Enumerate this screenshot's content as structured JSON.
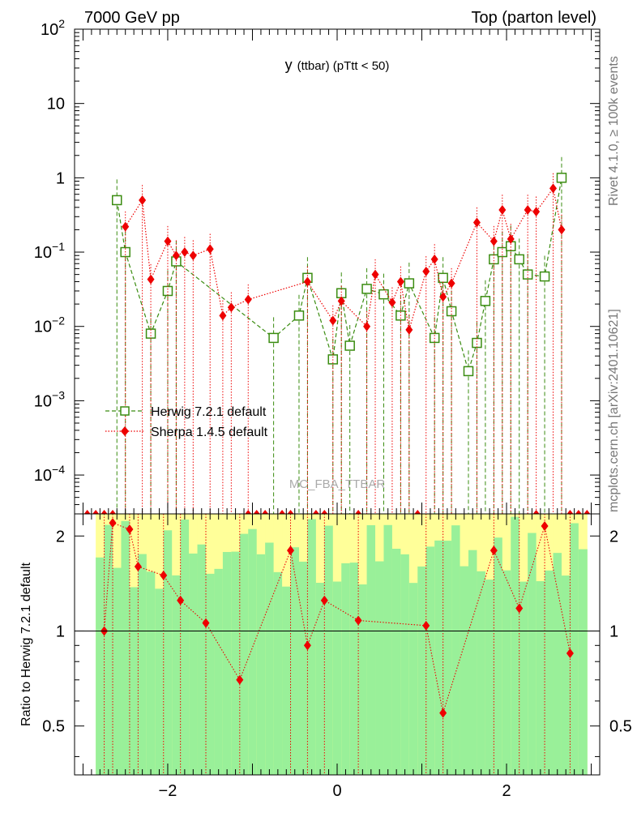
{
  "header": {
    "beam": "7000 GeV pp",
    "process": "Top (parton level)"
  },
  "side_labels": {
    "rivet": "Rivet 4.1.0, ≥ 100k events",
    "source": "mcplots.cern.ch [arXiv:2401.10621]"
  },
  "watermark": "MC_FBA_TTBAR",
  "chart_data": [
    {
      "panel": "main",
      "type": "scatter",
      "title_main": "y",
      "title_sub": "(ttbar)  (pTtt < 50)",
      "xlabel": "",
      "ylabel": "",
      "xlim": [
        -3.1,
        3.1
      ],
      "ylim": [
        3e-05,
        100
      ],
      "yscale": "log",
      "y_ticks": [
        {
          "value": 0.0001,
          "base": "10",
          "exp": "−4"
        },
        {
          "value": 0.001,
          "base": "10",
          "exp": "−3"
        },
        {
          "value": 0.01,
          "base": "10",
          "exp": "−2"
        },
        {
          "value": 0.1,
          "base": "10",
          "exp": "−1"
        },
        {
          "value": 1,
          "base": "1",
          "exp": ""
        },
        {
          "value": 10,
          "base": "10",
          "exp": ""
        },
        {
          "value": 100,
          "base": "10",
          "exp": "2"
        }
      ],
      "legend": [
        "Herwig 7.2.1 default",
        "Sherpa 1.4.5 default"
      ],
      "legend_position": "middle-left",
      "series": [
        {
          "name": "Herwig 7.2.1 default",
          "color": "#3a8c10",
          "marker": "open-square",
          "line": "dashed",
          "x": [
            -2.6,
            -2.5,
            -2.2,
            -2.0,
            -1.9,
            -0.75,
            -0.45,
            -0.35,
            -0.05,
            0.05,
            0.15,
            0.35,
            0.55,
            0.75,
            0.85,
            1.15,
            1.25,
            1.35,
            1.55,
            1.65,
            1.75,
            1.85,
            1.95,
            2.05,
            2.15,
            2.25,
            2.45,
            2.65
          ],
          "values": [
            0.5,
            0.1,
            0.008,
            0.03,
            0.075,
            0.007,
            0.014,
            0.045,
            0.0036,
            0.028,
            0.0055,
            0.032,
            0.027,
            0.014,
            0.038,
            0.007,
            0.045,
            0.016,
            0.0025,
            0.006,
            0.022,
            0.08,
            0.1,
            0.12,
            0.08,
            0.05,
            0.047,
            1.0
          ]
        },
        {
          "name": "Sherpa 1.4.5 default",
          "color": "#ee0000",
          "marker": "filled-diamond",
          "line": "dotted",
          "x": [
            -2.5,
            -2.3,
            -2.2,
            -2.0,
            -1.9,
            -1.8,
            -1.7,
            -1.5,
            -1.35,
            -1.25,
            -1.05,
            -0.35,
            -0.05,
            0.05,
            0.35,
            0.45,
            0.65,
            0.75,
            0.85,
            1.05,
            1.15,
            1.25,
            1.35,
            1.65,
            1.85,
            1.95,
            2.05,
            2.25,
            2.35,
            2.55,
            2.65
          ],
          "values": [
            0.22,
            0.5,
            0.043,
            0.14,
            0.09,
            0.1,
            0.09,
            0.11,
            0.014,
            0.018,
            0.023,
            0.04,
            0.012,
            0.022,
            0.01,
            0.05,
            0.021,
            0.04,
            0.009,
            0.055,
            0.08,
            0.025,
            0.038,
            0.25,
            0.14,
            0.37,
            0.15,
            0.37,
            0.35,
            0.72,
            0.2
          ]
        }
      ]
    },
    {
      "panel": "ratio",
      "type": "scatter",
      "ylabel": "Ratio to Herwig 7.2.1 default",
      "xlim": [
        -3.1,
        3.1
      ],
      "ylim": [
        0.35,
        2.35
      ],
      "yscale": "log",
      "x_ticks": [
        {
          "value": -2,
          "label": "−2"
        },
        {
          "value": 0,
          "label": "0"
        },
        {
          "value": 2,
          "label": "2"
        }
      ],
      "y_ticks": [
        {
          "value": 0.5,
          "label": "0.5"
        },
        {
          "value": 1,
          "label": "1"
        },
        {
          "value": 2,
          "label": "2"
        }
      ],
      "reference_line": 1,
      "band_series": "Herwig 7.2.1 default",
      "series": [
        {
          "name": "Sherpa 1.4.5 default",
          "color": "#ee0000",
          "marker": "filled-diamond",
          "x": [
            -2.75,
            -2.65,
            -2.45,
            -2.35,
            -2.05,
            -1.85,
            -1.55,
            -1.15,
            -0.55,
            -0.35,
            -0.15,
            0.25,
            1.05,
            1.25,
            1.85,
            2.15,
            2.45,
            2.75
          ],
          "values": [
            1.0,
            2.2,
            2.1,
            1.6,
            1.5,
            1.25,
            1.06,
            0.7,
            1.8,
            0.9,
            1.25,
            1.08,
            1.04,
            0.55,
            1.8,
            1.18,
            2.15,
            0.85
          ]
        }
      ]
    }
  ]
}
